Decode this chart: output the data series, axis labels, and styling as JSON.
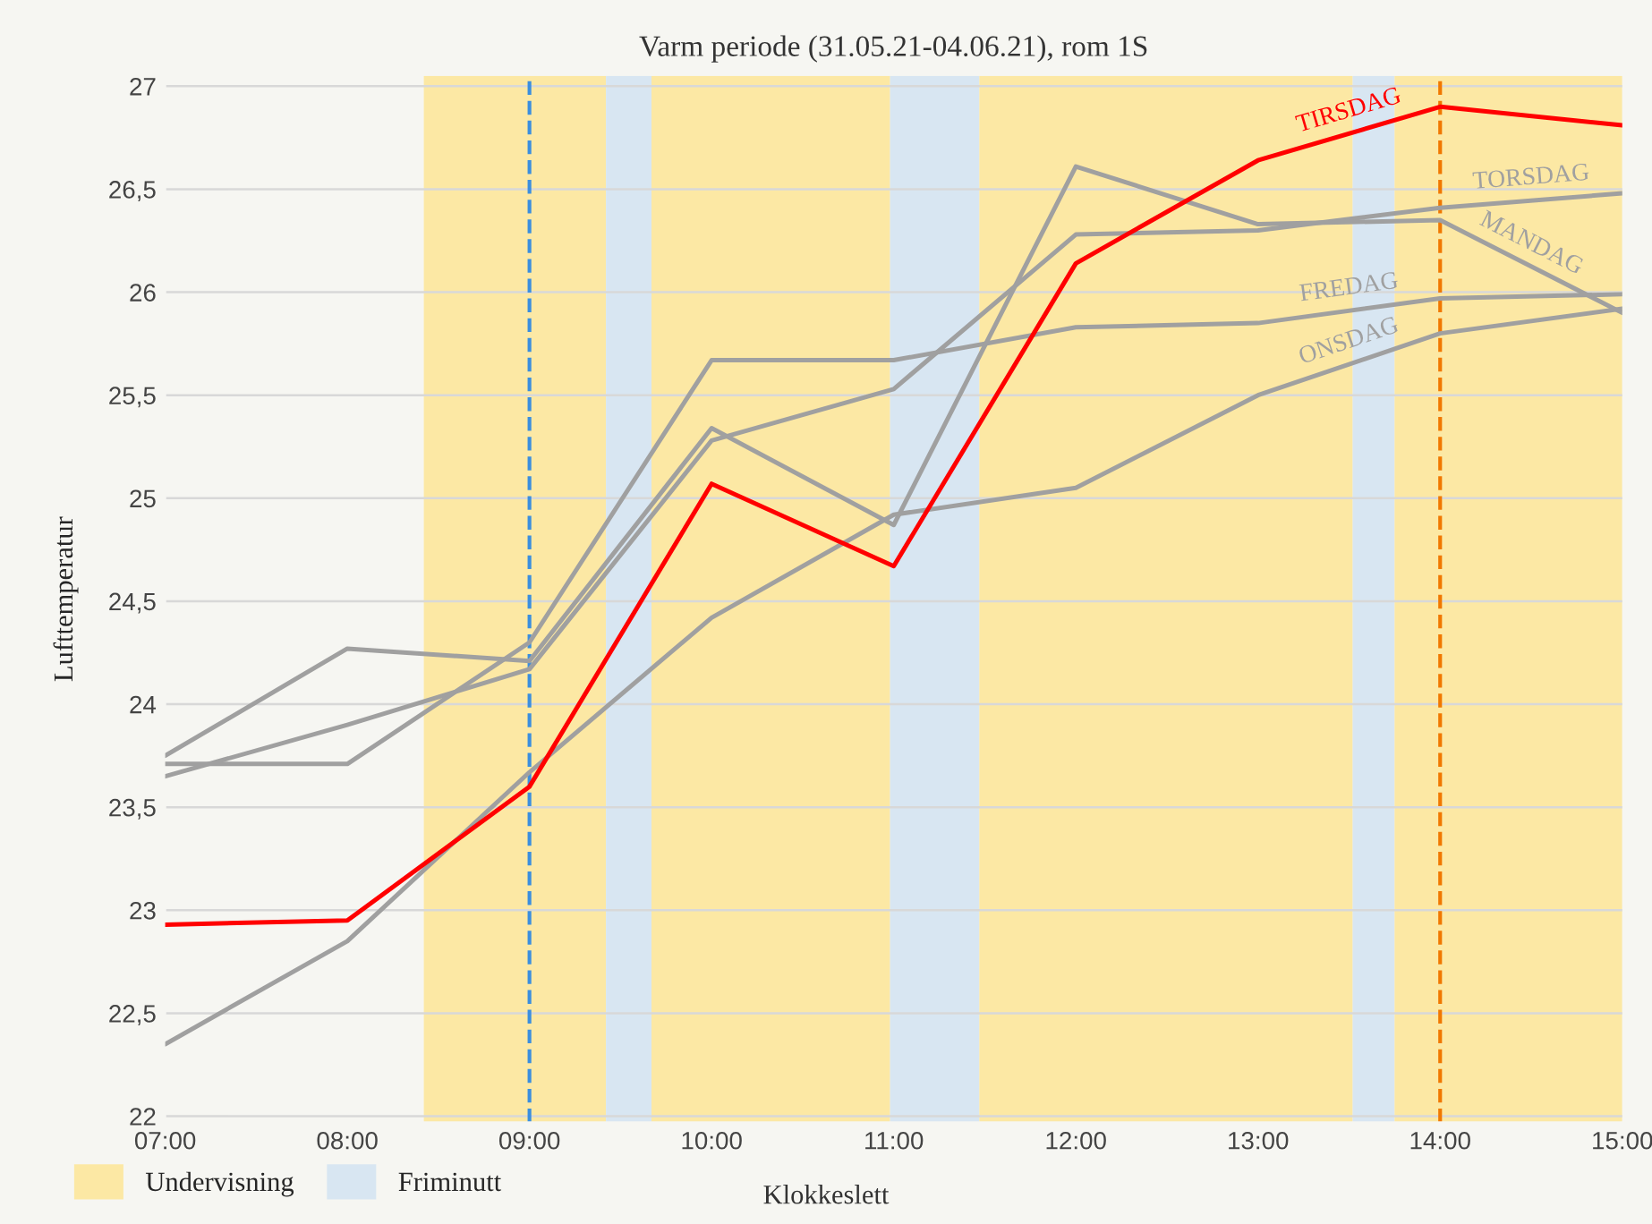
{
  "chart_data": {
    "type": "line",
    "title": "Varm periode (31.05.21-04.06.21), rom 1S",
    "xlabel": "Klokkeslett",
    "ylabel": "Lufttemperatur",
    "x": [
      7,
      8,
      9,
      10,
      11,
      12,
      13,
      14,
      15
    ],
    "series": [
      {
        "name": "TIRSDAG",
        "color": "#ff0000",
        "values": [
          22.93,
          22.95,
          23.6,
          25.07,
          24.67,
          26.14,
          26.64,
          26.9,
          26.81
        ]
      },
      {
        "name": "TORSDAG",
        "color": "#a0a0a0",
        "values": [
          23.65,
          23.9,
          24.17,
          25.28,
          25.53,
          26.28,
          26.3,
          26.41,
          26.48
        ]
      },
      {
        "name": "FREDAG",
        "color": "#a0a0a0",
        "values": [
          23.71,
          23.71,
          24.3,
          25.67,
          25.67,
          25.83,
          25.85,
          25.97,
          25.99
        ]
      },
      {
        "name": "MANDAG",
        "color": "#a0a0a0",
        "values": [
          23.75,
          24.27,
          24.21,
          25.34,
          24.87,
          26.61,
          26.33,
          26.35,
          25.9
        ]
      },
      {
        "name": "ONSDAG",
        "color": "#a0a0a0",
        "values": [
          22.35,
          22.85,
          23.67,
          24.42,
          24.92,
          25.05,
          25.5,
          25.8,
          25.92
        ]
      }
    ],
    "xlim": [
      7,
      15
    ],
    "ylim": [
      21.97,
      27.05
    ],
    "xticks": [
      {
        "value": 7,
        "label": "07:00"
      },
      {
        "value": 8,
        "label": "08:00"
      },
      {
        "value": 9,
        "label": "09:00"
      },
      {
        "value": 10,
        "label": "10:00"
      },
      {
        "value": 11,
        "label": "11:00"
      },
      {
        "value": 12,
        "label": "12:00"
      },
      {
        "value": 13,
        "label": "13:00"
      },
      {
        "value": 14,
        "label": "14:00"
      },
      {
        "value": 15,
        "label": "15:00"
      }
    ],
    "yticks": [
      22,
      {
        "value": 22.5,
        "label": "22,5"
      },
      23,
      {
        "value": 23.5,
        "label": "23,5"
      },
      24,
      {
        "value": 24.5,
        "label": "24,5"
      },
      25,
      {
        "value": 25.5,
        "label": "25,5"
      },
      26,
      {
        "value": 26.5,
        "label": "26,5"
      },
      27
    ],
    "bands": [
      {
        "axis": "x",
        "from": 8.42,
        "to": 9.42,
        "label": "Undervisning",
        "color": "#fce8a4"
      },
      {
        "axis": "x",
        "from": 9.42,
        "to": 9.67,
        "label": "Friminutt",
        "color": "#d8e6f2"
      },
      {
        "axis": "x",
        "from": 9.67,
        "to": 10.98,
        "color": "#fce8a4"
      },
      {
        "axis": "x",
        "from": 10.98,
        "to": 11.47,
        "color": "#d8e6f2"
      },
      {
        "axis": "x",
        "from": 11.47,
        "to": 13.52,
        "color": "#fce8a4"
      },
      {
        "axis": "x",
        "from": 13.52,
        "to": 13.75,
        "color": "#d8e6f2"
      },
      {
        "axis": "x",
        "from": 13.75,
        "to": 15,
        "color": "#fce8a4"
      }
    ],
    "ref_lines": [
      {
        "axis": "x",
        "value": 9,
        "color": "#3b8ede",
        "line_style": "dashed"
      },
      {
        "axis": "x",
        "value": 14,
        "color": "#f07800",
        "line_style": "dashed"
      }
    ],
    "grid": "y",
    "legend": "bottom left",
    "line_style": "solid",
    "marker": "none"
  }
}
